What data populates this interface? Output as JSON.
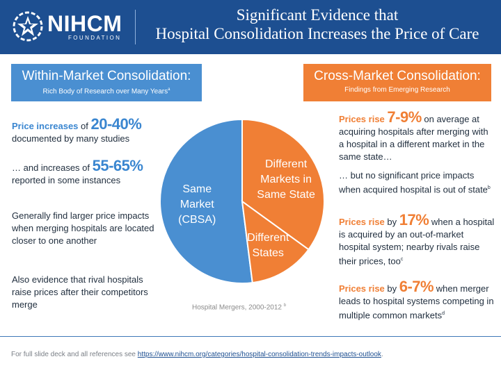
{
  "header": {
    "logo_name": "NIHCM",
    "logo_sub": "FOUNDATION",
    "title_line1": "Significant Evidence that",
    "title_line2": "Hospital Consolidation Increases the Price of Care"
  },
  "left_box": {
    "title": "Within-Market Consolidation:",
    "subtitle": "Rich Body of Research over Many Years",
    "subtitle_ref": "a"
  },
  "right_box": {
    "title": "Cross-Market Consolidation:",
    "subtitle": "Findings from Emerging Research"
  },
  "left_items": {
    "i1_label": "Price increases",
    "i1_of": " of ",
    "i1_big": "20-40%",
    "i1_rest": "documented by many studies",
    "i2_pre": "… and increases of ",
    "i2_big": "55-65%",
    "i2_rest": "reported in some instances",
    "i3": "Generally find larger price impacts when merging hospitals are located closer to one another",
    "i4": "Also evidence that rival hospitals raise prices after their competitors merge"
  },
  "right_items": {
    "r1_label": "Prices rise",
    "r1_big": "7-9%",
    "r1_rest": " on average at acquiring hospitals after merging with a hospital in a different market in the same state…",
    "r2": "… but no significant price impacts when acquired hospital is out of state",
    "r2_ref": "b",
    "r3_label": "Prices rise",
    "r3_by": " by ",
    "r3_big": "17%",
    "r3_rest": " when a hospital is acquired by an out-of-market hospital system; nearby rivals raise their prices, too",
    "r3_ref": "c",
    "r4_label": "Prices rise",
    "r4_by": " by ",
    "r4_big": "6-7%",
    "r4_rest": " when merger leads to hospital systems competing in multiple common markets",
    "r4_ref": "d"
  },
  "chart_data": {
    "type": "pie",
    "title": "Hospital Mergers, 2000-2012",
    "title_ref": "b",
    "series": [
      {
        "name": "Same Market (CBSA)",
        "value": 52,
        "color": "#4a8fd1"
      },
      {
        "name": "Different Markets in Same State",
        "value": 35,
        "color": "#f07f35"
      },
      {
        "name": "Different States",
        "value": 13,
        "color": "#f07f35"
      }
    ]
  },
  "footer": {
    "text": "For full slide deck and all references see ",
    "link": "https://www.nihcm.org/categories/hospital-consolidation-trends-impacts-outlook",
    "end": "."
  },
  "colors": {
    "header_bg": "#1d4f91",
    "blue": "#4a8fd1",
    "orange": "#f07f35"
  }
}
